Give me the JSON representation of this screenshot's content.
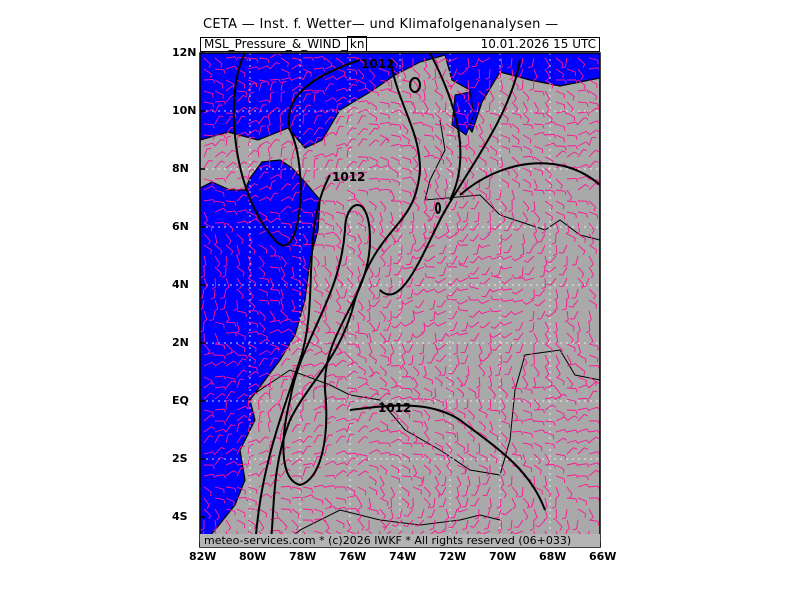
{
  "title": "CETA — Inst. f. Wetter— und Klimafolgenanalysen —",
  "header": {
    "product": "MSL_Pressure_&_WIND_",
    "unit": "kn",
    "valid": "10.01.2026 15 UTC"
  },
  "footer": "meteo-services.com * (c)2026 IWKF * All rights reserved (06+033)",
  "lat_ticks": [
    "12N",
    "10N",
    "8N",
    "6N",
    "4N",
    "2N",
    "EQ",
    "2S",
    "4S"
  ],
  "lon_ticks": [
    "82W",
    "80W",
    "78W",
    "76W",
    "74W",
    "72W",
    "70W",
    "68W",
    "66W"
  ],
  "contour_labels": [
    "1012",
    "1012",
    "1012"
  ],
  "colors": {
    "ocean": "#0000ff",
    "land": "#a9a9a9",
    "wind_barbs": "#ff1493",
    "isobars": "#000000",
    "grid": "#ffffff"
  }
}
